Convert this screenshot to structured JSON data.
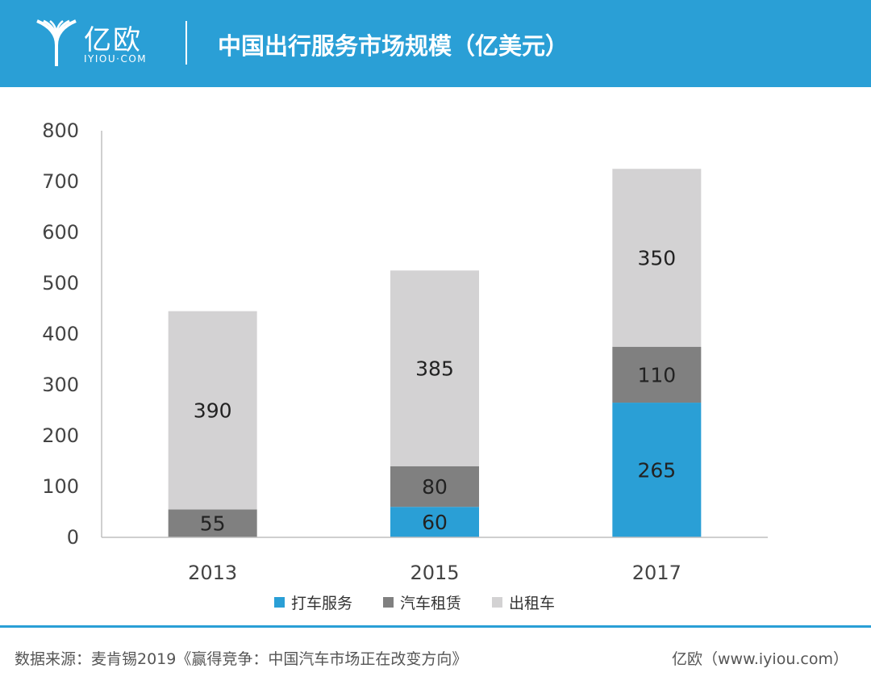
{
  "header": {
    "logo_text": "亿欧",
    "logo_sub": "IYIOU·COM",
    "title": "中国出行服务市场规模（亿美元）"
  },
  "colors": {
    "header_bg": "#2a9fd6",
    "ride_hailing": "#2a9fd6",
    "car_rental": "#808080",
    "taxi": "#d3d2d3"
  },
  "chart_data": {
    "type": "bar",
    "stacked": true,
    "title": "中国出行服务市场规模（亿美元）",
    "categories": [
      "2013",
      "2015",
      "2017"
    ],
    "series": [
      {
        "name": "打车服务",
        "values": [
          0,
          60,
          265
        ],
        "color": "#2a9fd6"
      },
      {
        "name": "汽车租赁",
        "values": [
          55,
          80,
          110
        ],
        "color": "#808080"
      },
      {
        "name": "出租车",
        "values": [
          390,
          385,
          350
        ],
        "color": "#d3d2d3"
      }
    ],
    "ylim": [
      0,
      800
    ],
    "yticks": [
      0,
      100,
      200,
      300,
      400,
      500,
      600,
      700,
      800
    ],
    "grid": false,
    "legend": "bottom"
  },
  "footer": {
    "source": "数据来源：麦肯锡2019《赢得竞争：中国汽车市场正在改变方向》",
    "credit": "亿欧（www.iyiou.com）"
  }
}
